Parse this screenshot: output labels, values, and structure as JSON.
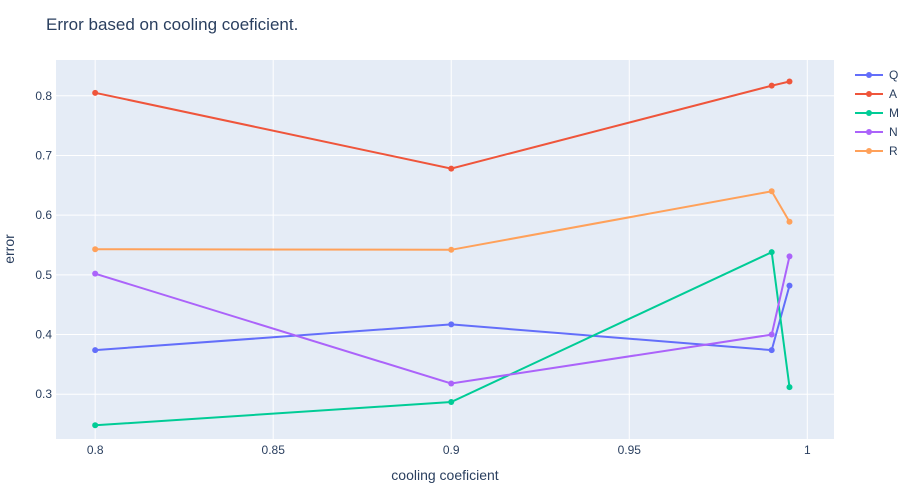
{
  "chart_data": {
    "type": "line",
    "title": "Error based on cooling coeficient.",
    "xlabel": "cooling coeficient",
    "ylabel": "error",
    "xlim": [
      0.789,
      1.0075
    ],
    "ylim": [
      0.225,
      0.86
    ],
    "x_ticks": [
      0.8,
      0.85,
      0.9,
      0.95,
      1
    ],
    "x_tick_labels": [
      "0.8",
      "0.85",
      "0.9",
      "0.95",
      "1"
    ],
    "y_ticks": [
      0.3,
      0.4,
      0.5,
      0.6,
      0.7,
      0.8
    ],
    "y_tick_labels": [
      "0.3",
      "0.4",
      "0.5",
      "0.6",
      "0.7",
      "0.8"
    ],
    "grid": true,
    "legend_position": "top-right",
    "x": [
      0.8,
      0.9,
      0.99,
      0.995
    ],
    "series": [
      {
        "name": "Q",
        "color": "#636efa",
        "values": [
          0.374,
          0.417,
          0.374,
          0.482
        ]
      },
      {
        "name": "A",
        "color": "#ef553b",
        "values": [
          0.805,
          0.678,
          0.817,
          0.824
        ]
      },
      {
        "name": "M",
        "color": "#00cc96",
        "values": [
          0.248,
          0.287,
          0.538,
          0.312
        ]
      },
      {
        "name": "N",
        "color": "#ab63fa",
        "values": [
          0.502,
          0.318,
          0.4,
          0.531
        ]
      },
      {
        "name": "R",
        "color": "#ffa15a",
        "values": [
          0.543,
          0.542,
          0.64,
          0.589
        ]
      }
    ]
  }
}
